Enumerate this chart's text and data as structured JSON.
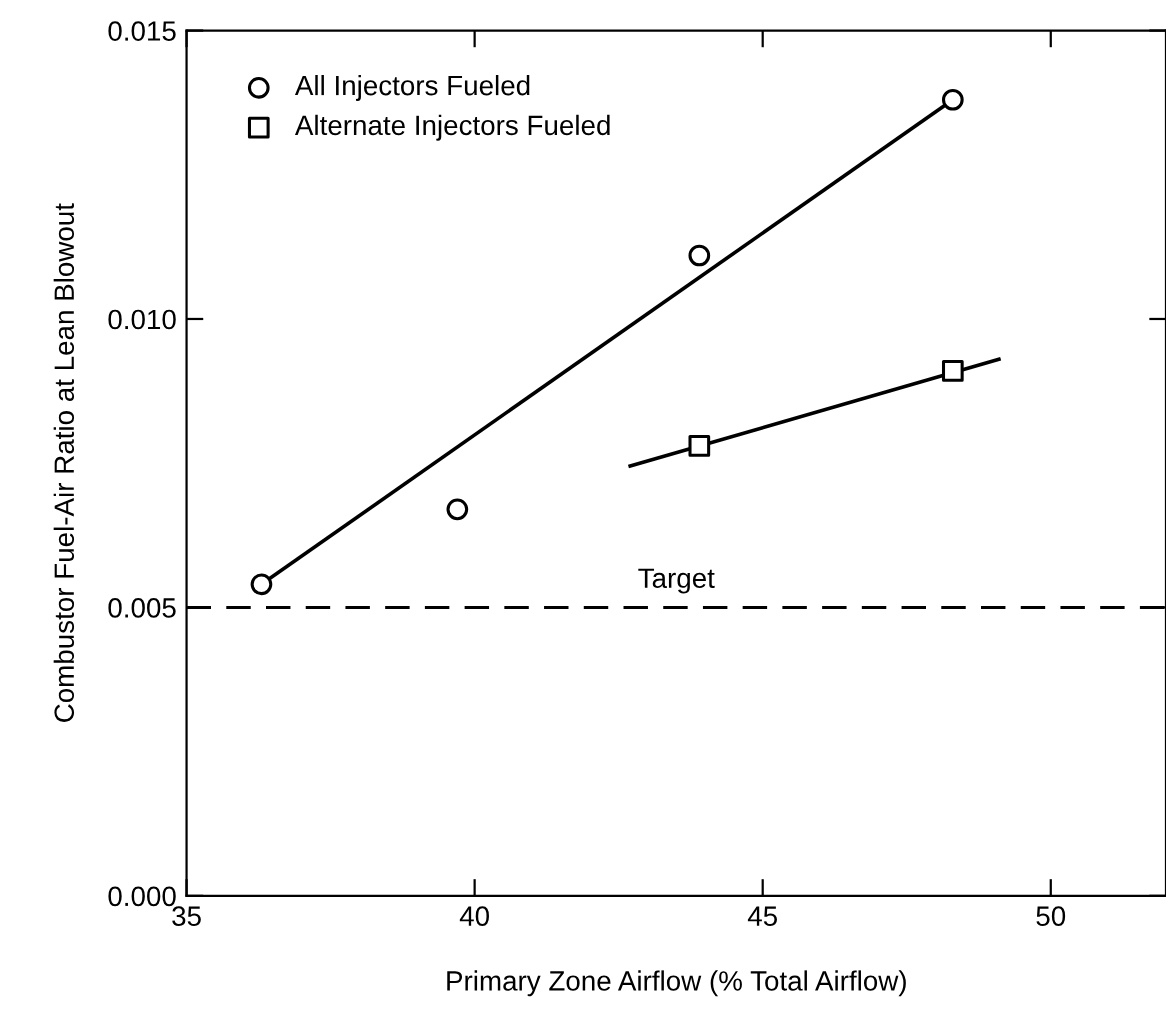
{
  "chart_data": {
    "type": "scatter",
    "xlabel": "Primary Zone Airflow (% Total Airflow)",
    "ylabel": "Combustor Fuel-Air Ratio at Lean Blowout",
    "xlim": [
      35,
      52
    ],
    "xticks": [
      35,
      40,
      45,
      50
    ],
    "ylim": [
      0,
      0.015
    ],
    "yticks": [
      {
        "value": 0,
        "label": "0.000"
      },
      {
        "value": 0.005,
        "label": "0.005"
      },
      {
        "value": 0.01,
        "label": "0.010"
      },
      {
        "value": 0.015,
        "label": "0.015"
      }
    ],
    "grid": false,
    "legend": "top left",
    "series": [
      {
        "name": "All Injectors Fueled",
        "marker": "circle",
        "color": "#000000",
        "x": [
          36.3,
          39.7,
          43.9,
          48.3
        ],
        "values": [
          0.0054,
          0.0067,
          0.0111,
          0.0138
        ]
      },
      {
        "name": "Alternate Injectors Fueled",
        "marker": "square",
        "color": "#000000",
        "x": [
          43.9,
          48.3
        ],
        "values": [
          0.0078,
          0.0091
        ]
      },
      {
        "type": "line",
        "marker": "none",
        "line_style": "solid",
        "color": "#000000",
        "x": [
          36.3,
          48.3
        ],
        "values": [
          0.0054,
          0.0138
        ]
      },
      {
        "type": "line",
        "marker": "none",
        "line_style": "solid",
        "color": "#000000",
        "x": [
          42.7,
          49.1
        ],
        "values": [
          0.00745,
          0.0093
        ]
      }
    ],
    "ref_lines": [
      {
        "axis": "y",
        "value": 0.005,
        "label": "Target",
        "color": "#000000",
        "line_style": "dashed"
      }
    ]
  }
}
